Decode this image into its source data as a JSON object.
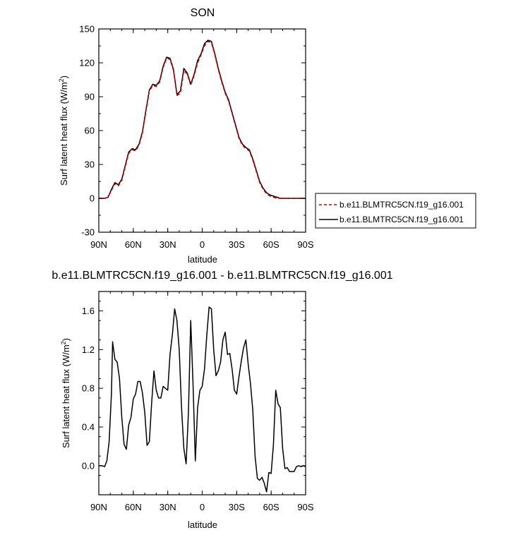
{
  "chart_data": [
    {
      "type": "line",
      "title": "SON",
      "xlabel": "latitude",
      "ylabel": "Surf latent heat flux (W/m",
      "ylabel_sup": "2",
      "ylabel_close": ")",
      "xlim": [
        90,
        -90
      ],
      "ylim": [
        -30,
        150
      ],
      "xtick_values": [
        90,
        60,
        30,
        0,
        -30,
        -60,
        -90
      ],
      "xtick_labels": [
        "90N",
        "60N",
        "30N",
        "0",
        "30S",
        "60S",
        "90S"
      ],
      "ytick_values": [
        -30,
        0,
        30,
        60,
        90,
        120,
        150
      ],
      "ytick_labels": [
        "-30",
        "0",
        "30",
        "60",
        "90",
        "120",
        "150"
      ],
      "legend_position": "right",
      "series": [
        {
          "name": "b.e11.BLMTRC5CN.f19_g16.001",
          "color": "#cc0000",
          "style": "dashed",
          "x": [
            90,
            85,
            82,
            79,
            76,
            73,
            70,
            67,
            64,
            61,
            58,
            55,
            52,
            49,
            46,
            43,
            40,
            37,
            34,
            31,
            28,
            25,
            22,
            19,
            16,
            13,
            10,
            7,
            4,
            1,
            -2,
            -5,
            -8,
            -11,
            -14,
            -17,
            -20,
            -23,
            -26,
            -29,
            -32,
            -35,
            -38,
            -41,
            -44,
            -47,
            -50,
            -53,
            -56,
            -59,
            -62,
            -65,
            -68,
            -71,
            -74,
            -77,
            -80,
            -83,
            -86,
            -90
          ],
          "y": [
            0,
            0,
            1,
            7,
            13,
            11,
            16,
            28,
            40,
            43,
            42,
            47,
            58,
            77,
            95,
            100,
            99,
            103,
            116,
            124,
            123,
            113,
            91,
            93,
            113,
            110,
            100,
            109,
            120,
            127,
            135,
            139,
            138,
            127,
            114,
            103,
            93,
            86,
            75,
            64,
            53,
            47,
            44,
            42,
            34,
            24,
            14,
            8,
            4,
            2,
            1,
            0,
            0,
            0,
            0,
            0,
            0,
            0,
            0,
            0
          ]
        },
        {
          "name": "b.e11.BLMTRC5CN.f19_g16.001",
          "color": "#000000",
          "style": "solid",
          "x": [
            90,
            85,
            82,
            79,
            76,
            73,
            70,
            67,
            64,
            61,
            58,
            55,
            52,
            49,
            46,
            43,
            40,
            37,
            34,
            31,
            28,
            25,
            22,
            19,
            16,
            13,
            10,
            7,
            4,
            1,
            -2,
            -5,
            -8,
            -11,
            -14,
            -17,
            -20,
            -23,
            -26,
            -29,
            -32,
            -35,
            -38,
            -41,
            -44,
            -47,
            -50,
            -53,
            -56,
            -59,
            -62,
            -65,
            -68,
            -71,
            -74,
            -77,
            -80,
            -83,
            -86,
            -90
          ],
          "y": [
            0,
            0,
            1,
            8,
            14,
            12,
            17,
            29,
            41,
            44,
            43,
            48,
            59,
            78,
            96,
            101,
            100,
            104,
            117,
            125,
            124,
            114,
            92,
            95,
            115,
            111,
            101,
            110,
            122,
            128,
            137,
            140,
            139,
            128,
            115,
            104,
            94,
            87,
            76,
            65,
            54,
            48,
            45,
            43,
            35,
            25,
            15,
            9,
            5,
            3,
            2,
            1,
            0,
            0,
            0,
            0,
            0,
            0,
            0,
            0
          ]
        }
      ]
    },
    {
      "type": "line",
      "title": "b.e11.BLMTRC5CN.f19_g16.001 - b.e11.BLMTRC5CN.f19_g16.001",
      "xlabel": "latitude",
      "ylabel": "Surf latent heat flux (W/m",
      "ylabel_sup": "2",
      "ylabel_close": ")",
      "xlim": [
        90,
        -90
      ],
      "ylim": [
        -0.3,
        1.8
      ],
      "xtick_values": [
        90,
        60,
        30,
        0,
        -30,
        -60,
        -90
      ],
      "xtick_labels": [
        "90N",
        "60N",
        "30N",
        "0",
        "30S",
        "60S",
        "90S"
      ],
      "ytick_values": [
        0,
        0.4,
        0.8,
        1.2,
        1.6
      ],
      "ytick_labels": [
        "0.0",
        "0.4",
        "0.8",
        "1.2",
        "1.6"
      ],
      "series": [
        {
          "color": "#000000",
          "style": "solid",
          "x": [
            90,
            87,
            85,
            83,
            81,
            79,
            78,
            76,
            74,
            72,
            70,
            68,
            66,
            64,
            62,
            60,
            58,
            56,
            54,
            52,
            50,
            48,
            46,
            44,
            42,
            40,
            38,
            36,
            34,
            32,
            30,
            28,
            26,
            24,
            22,
            20,
            18,
            16,
            14,
            12,
            10,
            8,
            6,
            4,
            2,
            0,
            -2,
            -4,
            -6,
            -8,
            -10,
            -12,
            -14,
            -16,
            -18,
            -20,
            -22,
            -24,
            -26,
            -28,
            -30,
            -32,
            -34,
            -36,
            -38,
            -40,
            -42,
            -44,
            -46,
            -48,
            -50,
            -52,
            -54,
            -56,
            -58,
            -60,
            -62,
            -64,
            -66,
            -68,
            -70,
            -72,
            -74,
            -76,
            -78,
            -80,
            -82,
            -84,
            -86,
            -88,
            -90
          ],
          "y": [
            0.0,
            0.0,
            -0.01,
            0.05,
            0.25,
            0.75,
            1.28,
            1.1,
            1.07,
            0.9,
            0.5,
            0.22,
            0.17,
            0.42,
            0.5,
            0.69,
            0.74,
            0.87,
            0.87,
            0.75,
            0.55,
            0.21,
            0.25,
            0.65,
            0.98,
            0.78,
            0.7,
            0.7,
            0.82,
            0.8,
            0.78,
            1.15,
            1.35,
            1.62,
            1.5,
            1.2,
            0.6,
            0.18,
            0.02,
            0.55,
            1.5,
            0.85,
            0.05,
            0.6,
            0.78,
            0.82,
            1.0,
            1.35,
            1.64,
            1.62,
            1.2,
            0.93,
            0.98,
            1.07,
            1.3,
            1.38,
            1.15,
            1.16,
            1.0,
            0.78,
            0.74,
            0.92,
            1.08,
            1.22,
            1.3,
            1.05,
            0.85,
            0.58,
            0.1,
            -0.13,
            -0.15,
            -0.12,
            -0.18,
            -0.27,
            -0.07,
            -0.08,
            0.22,
            0.78,
            0.64,
            0.6,
            0.18,
            -0.03,
            -0.02,
            -0.06,
            -0.06,
            -0.06,
            -0.01,
            0.0,
            -0.01,
            0.0,
            -0.01
          ]
        }
      ]
    }
  ]
}
